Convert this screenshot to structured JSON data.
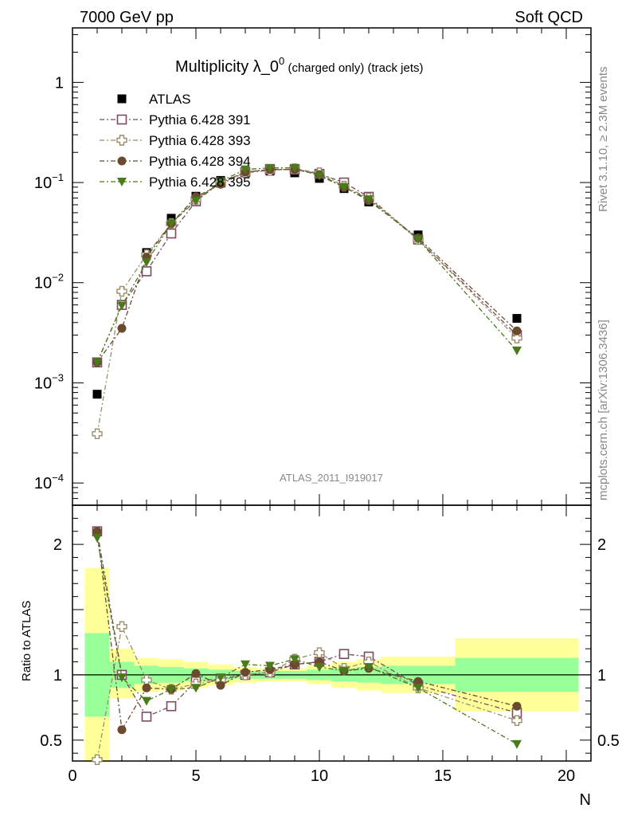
{
  "header": {
    "left": "7000 GeV pp",
    "right": "Soft QCD"
  },
  "title": {
    "main": "Multiplicity λ_0",
    "sup": "0",
    "sub": " (charged only) (track jets)"
  },
  "side": {
    "top": "Rivet 3.1.10, ≥ 2.3M events",
    "bottom": "mcplots.cern.ch [arXiv:1306.3436]"
  },
  "analysis_id": "ATLAS_2011_I919017",
  "ratio_ylabel": "Ratio to ATLAS",
  "xlabel": "N",
  "colors": {
    "ATLAS": "#000000",
    "Pythia 6.428 391": "#7b4a63",
    "Pythia 6.428 393": "#9b8b6a",
    "Pythia 6.428 394": "#6b4a2e",
    "Pythia 6.428 395": "#4a7a1a",
    "band_inner": "#99ff99",
    "band_outer": "#ffff99"
  },
  "chart_data": [
    {
      "type": "scatter",
      "panel": "main",
      "yscale": "log",
      "xlim": [
        0,
        21
      ],
      "ylim": [
        6e-05,
        3.5
      ],
      "y_ticks": [
        {
          "v": 1,
          "label": "1"
        },
        {
          "v": 0.1,
          "label": "10",
          "exp": "−1"
        },
        {
          "v": 0.01,
          "label": "10",
          "exp": "−2"
        },
        {
          "v": 0.001,
          "label": "10",
          "exp": "−3"
        },
        {
          "v": 0.0001,
          "label": "10",
          "exp": "−4"
        }
      ],
      "legend_position": "top-left",
      "x": [
        1,
        2,
        3,
        4,
        5,
        6,
        7,
        8,
        9,
        10,
        11,
        12,
        14,
        18
      ],
      "series": [
        {
          "name": "ATLAS",
          "marker": "square-filled",
          "values": [
            0.00077,
            0.006,
            0.02,
            0.044,
            0.073,
            0.105,
            0.125,
            0.13,
            0.125,
            0.11,
            0.087,
            0.064,
            0.03,
            0.0044
          ]
        },
        {
          "name": "Pythia 6.428 391",
          "marker": "square-open",
          "values": [
            0.0016,
            0.006,
            0.013,
            0.031,
            0.065,
            0.1,
            0.127,
            0.135,
            0.135,
            0.122,
            0.1,
            0.072,
            0.027,
            0.003
          ]
        },
        {
          "name": "Pythia 6.428 393",
          "marker": "plus-open",
          "values": [
            0.00031,
            0.0082,
            0.019,
            0.039,
            0.068,
            0.1,
            0.125,
            0.132,
            0.137,
            0.125,
            0.092,
            0.07,
            0.027,
            0.0028
          ]
        },
        {
          "name": "Pythia 6.428 394",
          "marker": "circle-filled",
          "values": [
            0.0016,
            0.0035,
            0.018,
            0.039,
            0.072,
            0.096,
            0.127,
            0.135,
            0.135,
            0.12,
            0.09,
            0.066,
            0.028,
            0.0033
          ]
        },
        {
          "name": "Pythia 6.428 395",
          "marker": "triangle-down-filled",
          "values": [
            0.0016,
            0.0059,
            0.016,
            0.039,
            0.066,
            0.103,
            0.135,
            0.14,
            0.14,
            0.117,
            0.09,
            0.068,
            0.027,
            0.0021
          ]
        }
      ]
    },
    {
      "type": "scatter",
      "panel": "ratio",
      "ylim": [
        0.34,
        2.3
      ],
      "y_ticks": [
        {
          "v": 2,
          "label": "2"
        },
        {
          "v": 1,
          "label": "1"
        },
        {
          "v": 0.5,
          "label": "0.5"
        }
      ],
      "x_ticks": [
        0,
        5,
        10,
        15,
        20
      ],
      "xlabel": "N",
      "ylabel": "Ratio to ATLAS",
      "bands": {
        "edges": [
          0.5,
          1.5,
          2.5,
          3.5,
          4.5,
          5.5,
          6.5,
          7.5,
          8.5,
          9.5,
          10.5,
          11.5,
          12.5,
          15.5,
          20.5
        ],
        "inner_lo": [
          0.68,
          0.9,
          0.93,
          0.94,
          0.95,
          0.96,
          0.97,
          0.97,
          0.97,
          0.96,
          0.95,
          0.94,
          0.93,
          0.87
        ],
        "inner_hi": [
          1.32,
          1.1,
          1.07,
          1.06,
          1.05,
          1.04,
          1.03,
          1.03,
          1.03,
          1.04,
          1.05,
          1.06,
          1.07,
          1.13
        ],
        "outer_lo": [
          0.34,
          0.82,
          0.87,
          0.88,
          0.9,
          0.92,
          0.94,
          0.95,
          0.95,
          0.93,
          0.9,
          0.88,
          0.86,
          0.72
        ],
        "outer_hi": [
          1.82,
          1.2,
          1.13,
          1.12,
          1.1,
          1.08,
          1.06,
          1.05,
          1.05,
          1.07,
          1.1,
          1.12,
          1.14,
          1.28
        ]
      },
      "series": [
        {
          "name": "Pythia 6.428 391",
          "values": [
            2.1,
            1.0,
            0.68,
            0.76,
            0.95,
            0.97,
            1.0,
            1.02,
            1.08,
            1.1,
            1.16,
            1.14,
            0.92,
            0.71
          ]
        },
        {
          "name": "Pythia 6.428 393",
          "values": [
            0.35,
            1.37,
            0.96,
            0.89,
            0.93,
            0.96,
            1.0,
            1.02,
            1.12,
            1.17,
            1.05,
            1.1,
            0.9,
            0.65
          ]
        },
        {
          "name": "Pythia 6.428 394",
          "values": [
            2.1,
            0.58,
            0.9,
            0.89,
            1.01,
            0.92,
            1.02,
            1.04,
            1.08,
            1.1,
            1.03,
            1.05,
            0.95,
            0.76
          ]
        },
        {
          "name": "Pythia 6.428 395",
          "values": [
            2.05,
            0.98,
            0.8,
            0.89,
            0.9,
            0.98,
            1.08,
            1.07,
            1.12,
            1.06,
            1.03,
            1.06,
            0.9,
            0.47
          ]
        }
      ]
    }
  ]
}
